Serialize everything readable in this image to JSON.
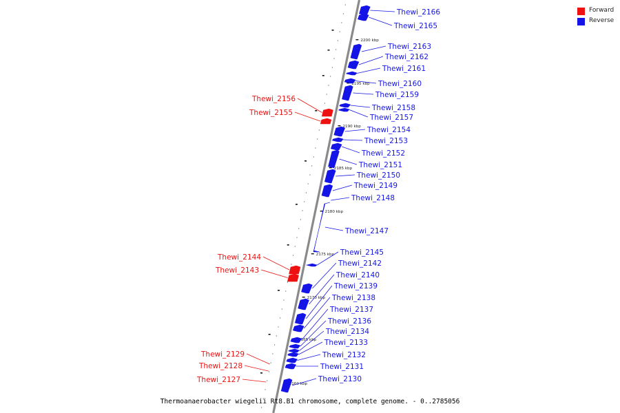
{
  "legend": [
    {
      "label": "Forward",
      "color": "#ee1111"
    },
    {
      "label": "Reverse",
      "color": "#1414e6"
    }
  ],
  "caption": "Thermoanaerobacter wiegelii Rt8.B1 chromosome, complete genome. - 0..2785056",
  "ticks": [
    {
      "label": "2200 kbp",
      "kbp": 2200
    },
    {
      "label": "2195 kbp",
      "kbp": 2195
    },
    {
      "label": "2190 kbp",
      "kbp": 2190
    },
    {
      "label": "2185 kbp",
      "kbp": 2185
    },
    {
      "label": "2180 kbp",
      "kbp": 2180
    },
    {
      "label": "2175 kbp",
      "kbp": 2175
    },
    {
      "label": "2170 kbp",
      "kbp": 2170
    },
    {
      "label": "2165 kbp",
      "kbp": 2165
    },
    {
      "label": "2160 kbp",
      "kbp": 2160
    }
  ],
  "genes": [
    {
      "name": "Thewi_2166",
      "strand": "reverse"
    },
    {
      "name": "Thewi_2165",
      "strand": "reverse"
    },
    {
      "name": "Thewi_2163",
      "strand": "reverse"
    },
    {
      "name": "Thewi_2162",
      "strand": "reverse"
    },
    {
      "name": "Thewi_2161",
      "strand": "reverse"
    },
    {
      "name": "Thewi_2160",
      "strand": "reverse"
    },
    {
      "name": "Thewi_2159",
      "strand": "reverse"
    },
    {
      "name": "Thewi_2158",
      "strand": "reverse"
    },
    {
      "name": "Thewi_2157",
      "strand": "reverse"
    },
    {
      "name": "Thewi_2156",
      "strand": "forward"
    },
    {
      "name": "Thewi_2155",
      "strand": "forward"
    },
    {
      "name": "Thewi_2154",
      "strand": "reverse"
    },
    {
      "name": "Thewi_2153",
      "strand": "reverse"
    },
    {
      "name": "Thewi_2152",
      "strand": "reverse"
    },
    {
      "name": "Thewi_2151",
      "strand": "reverse"
    },
    {
      "name": "Thewi_2150",
      "strand": "reverse"
    },
    {
      "name": "Thewi_2149",
      "strand": "reverse"
    },
    {
      "name": "Thewi_2148",
      "strand": "reverse"
    },
    {
      "name": "Thewi_2147",
      "strand": "reverse"
    },
    {
      "name": "Thewi_2145",
      "strand": "reverse"
    },
    {
      "name": "Thewi_2144",
      "strand": "forward"
    },
    {
      "name": "Thewi_2143",
      "strand": "forward"
    },
    {
      "name": "Thewi_2142",
      "strand": "reverse"
    },
    {
      "name": "Thewi_2140",
      "strand": "reverse"
    },
    {
      "name": "Thewi_2139",
      "strand": "reverse"
    },
    {
      "name": "Thewi_2138",
      "strand": "reverse"
    },
    {
      "name": "Thewi_2137",
      "strand": "reverse"
    },
    {
      "name": "Thewi_2136",
      "strand": "reverse"
    },
    {
      "name": "Thewi_2134",
      "strand": "reverse"
    },
    {
      "name": "Thewi_2133",
      "strand": "reverse"
    },
    {
      "name": "Thewi_2132",
      "strand": "reverse"
    },
    {
      "name": "Thewi_2131",
      "strand": "reverse"
    },
    {
      "name": "Thewi_2130",
      "strand": "reverse"
    },
    {
      "name": "Thewi_2129",
      "strand": "forward"
    },
    {
      "name": "Thewi_2128",
      "strand": "forward"
    },
    {
      "name": "Thewi_2127",
      "strand": "forward"
    }
  ]
}
